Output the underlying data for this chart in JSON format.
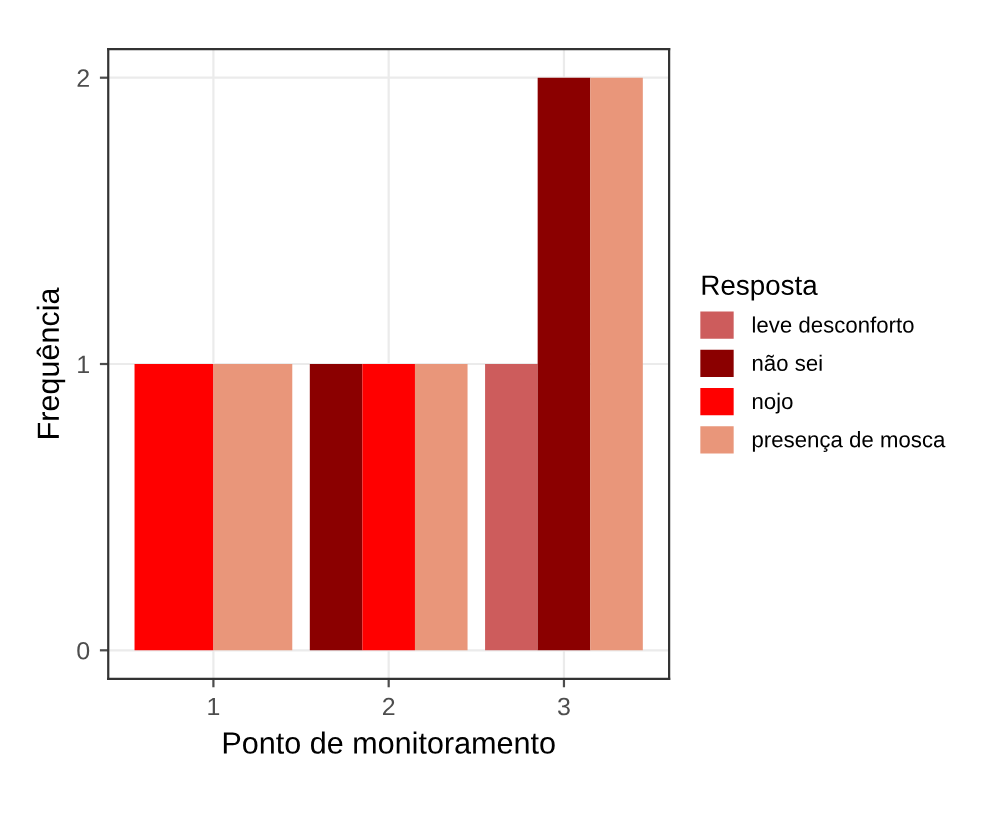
{
  "chart_data": {
    "type": "bar",
    "xlabel": "Ponto de monitoramento",
    "ylabel": "Frequência",
    "legend_title": "Resposta",
    "categories": [
      "1",
      "2",
      "3"
    ],
    "series": [
      {
        "name": "leve desconforto",
        "color": "#cd5c5c",
        "values": [
          null,
          null,
          1
        ]
      },
      {
        "name": "não sei",
        "color": "#8b0000",
        "values": [
          null,
          1,
          2
        ]
      },
      {
        "name": "nojo",
        "color": "#ff0000",
        "values": [
          1,
          1,
          null
        ]
      },
      {
        "name": "presença de mosca",
        "color": "#e9967a",
        "values": [
          1,
          1,
          2
        ]
      }
    ],
    "ylim": [
      -0.1,
      2.1
    ],
    "yticks": [
      0,
      1,
      2
    ],
    "grid": true,
    "legend": "right"
  }
}
